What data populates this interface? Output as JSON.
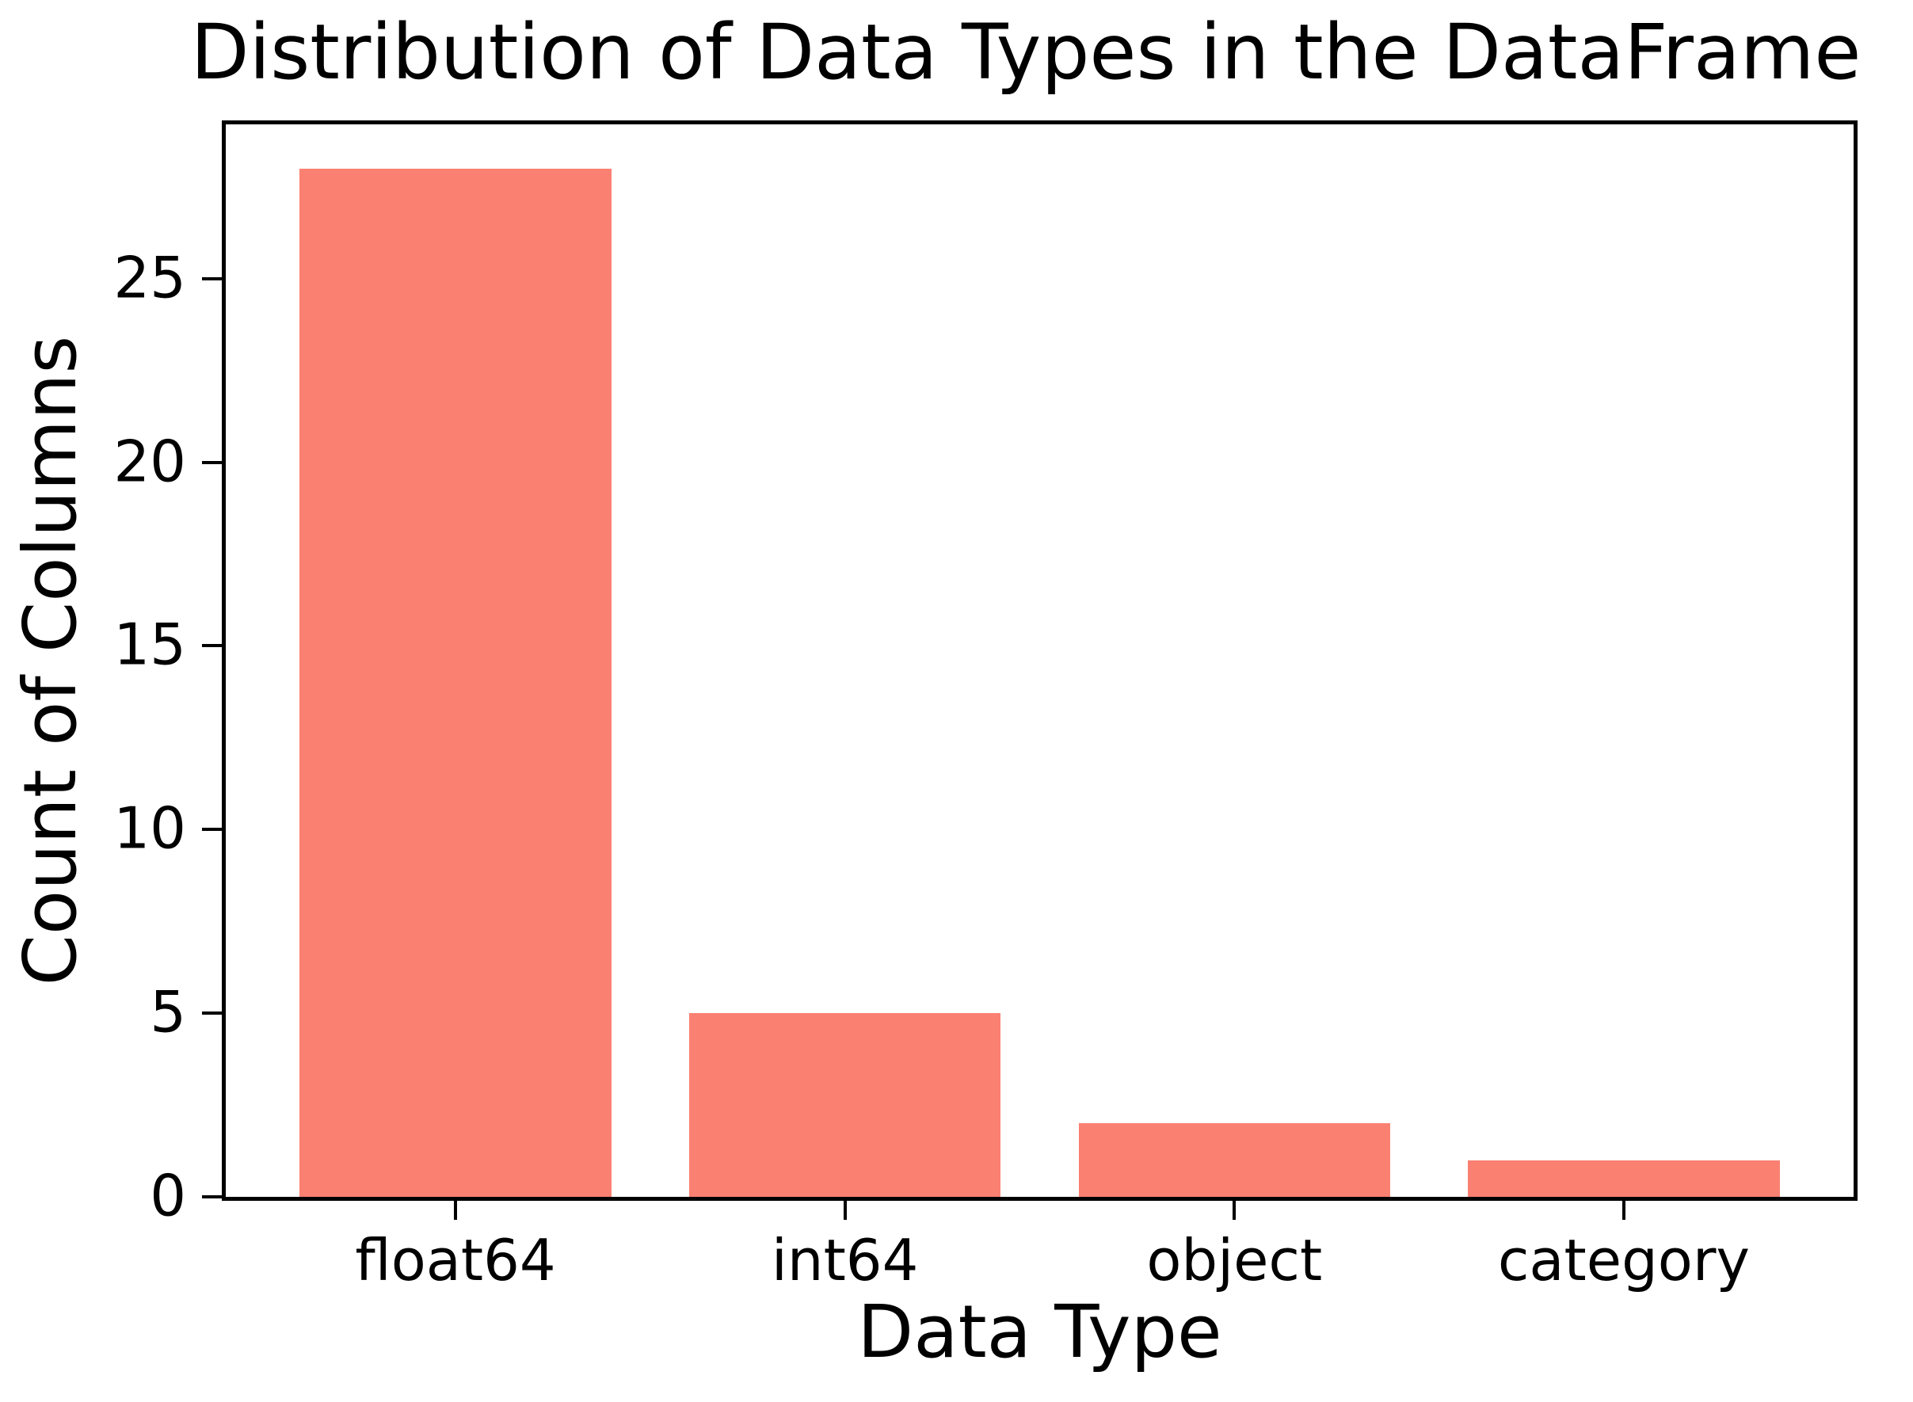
{
  "chart_data": {
    "type": "bar",
    "title": "Distribution of Data Types in the DataFrame",
    "xlabel": "Data Type",
    "ylabel": "Count of Columns",
    "categories": [
      "float64",
      "int64",
      "object",
      "category"
    ],
    "values": [
      28,
      5,
      2,
      1
    ],
    "yticks": [
      0,
      5,
      10,
      15,
      20,
      25
    ],
    "ylim": [
      0,
      29.2
    ],
    "xlim": [
      -0.59,
      3.59
    ],
    "bar_width": 0.8,
    "bar_color": "#FA8072",
    "axis_color": "#000000",
    "background_color": "#FFFFFF",
    "grid": false,
    "legend": "none"
  }
}
